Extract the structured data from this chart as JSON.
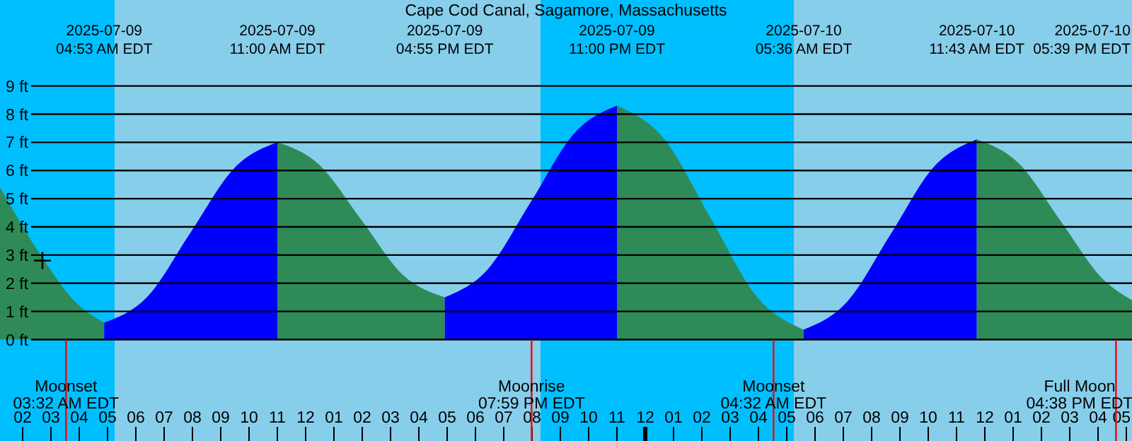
{
  "chart_data": {
    "type": "area",
    "title": "Cape Cod Canal, Sagamore, Massachusetts",
    "xlim": [
      "2025-07-09T01:12",
      "2025-07-10T17:12"
    ],
    "ylim": [
      -3.6,
      12.05
    ],
    "yticks": [
      {
        "value": 0,
        "label": "0 ft"
      },
      {
        "value": 1,
        "label": "1 ft"
      },
      {
        "value": 2,
        "label": "2 ft"
      },
      {
        "value": 3,
        "label": "3 ft"
      },
      {
        "value": 4,
        "label": "4 ft"
      },
      {
        "value": 5,
        "label": "5 ft"
      },
      {
        "value": 6,
        "label": "6 ft"
      },
      {
        "value": 7,
        "label": "7 ft"
      },
      {
        "value": 8,
        "label": "8 ft"
      },
      {
        "value": 9,
        "label": "9 ft"
      }
    ],
    "xticks": [
      {
        "value": "2025-07-09T02:00",
        "label": "02"
      },
      {
        "value": "2025-07-09T03:00",
        "label": "03"
      },
      {
        "value": "2025-07-09T04:00",
        "label": "04"
      },
      {
        "value": "2025-07-09T05:00",
        "label": "05"
      },
      {
        "value": "2025-07-09T06:00",
        "label": "06"
      },
      {
        "value": "2025-07-09T07:00",
        "label": "07"
      },
      {
        "value": "2025-07-09T08:00",
        "label": "08"
      },
      {
        "value": "2025-07-09T09:00",
        "label": "09"
      },
      {
        "value": "2025-07-09T10:00",
        "label": "10"
      },
      {
        "value": "2025-07-09T11:00",
        "label": "11"
      },
      {
        "value": "2025-07-09T12:00",
        "label": "12"
      },
      {
        "value": "2025-07-09T13:00",
        "label": "01"
      },
      {
        "value": "2025-07-09T14:00",
        "label": "02"
      },
      {
        "value": "2025-07-09T15:00",
        "label": "03"
      },
      {
        "value": "2025-07-09T16:00",
        "label": "04"
      },
      {
        "value": "2025-07-09T17:00",
        "label": "05"
      },
      {
        "value": "2025-07-09T18:00",
        "label": "06"
      },
      {
        "value": "2025-07-09T19:00",
        "label": "07"
      },
      {
        "value": "2025-07-09T20:00",
        "label": "08"
      },
      {
        "value": "2025-07-09T21:00",
        "label": "09"
      },
      {
        "value": "2025-07-09T22:00",
        "label": "10"
      },
      {
        "value": "2025-07-09T23:00",
        "label": "11"
      },
      {
        "value": "2025-07-10T00:00",
        "label": "12"
      },
      {
        "value": "2025-07-10T01:00",
        "label": "01"
      },
      {
        "value": "2025-07-10T02:00",
        "label": "02"
      },
      {
        "value": "2025-07-10T03:00",
        "label": "03"
      },
      {
        "value": "2025-07-10T04:00",
        "label": "04"
      },
      {
        "value": "2025-07-10T05:00",
        "label": "05"
      },
      {
        "value": "2025-07-10T06:00",
        "label": "06"
      },
      {
        "value": "2025-07-10T07:00",
        "label": "07"
      },
      {
        "value": "2025-07-10T08:00",
        "label": "08"
      },
      {
        "value": "2025-07-10T09:00",
        "label": "09"
      },
      {
        "value": "2025-07-10T10:00",
        "label": "10"
      },
      {
        "value": "2025-07-10T11:00",
        "label": "11"
      },
      {
        "value": "2025-07-10T12:00",
        "label": "12"
      },
      {
        "value": "2025-07-10T13:00",
        "label": "01"
      },
      {
        "value": "2025-07-10T14:00",
        "label": "02"
      },
      {
        "value": "2025-07-10T15:00",
        "label": "03"
      },
      {
        "value": "2025-07-10T16:00",
        "label": "04"
      },
      {
        "value": "2025-07-10T17:00",
        "label": "05"
      }
    ],
    "grid": "y",
    "series": [
      {
        "color": "#2e8b57",
        "x": [
          "2025-07-09T01:12",
          "2025-07-09T02:42",
          "2025-07-09T03:48",
          "2025-07-09T04:53"
        ],
        "values": [
          5.4,
          2.9,
          1.4,
          0.6
        ]
      },
      {
        "color": "#0000ff",
        "x": [
          "2025-07-09T04:53",
          "2025-07-09T06:25",
          "2025-07-09T07:56",
          "2025-07-09T09:28",
          "2025-07-09T11:00"
        ],
        "values": [
          0.6,
          1.53,
          3.8,
          6.07,
          7.0
        ]
      },
      {
        "color": "#2e8b57",
        "x": [
          "2025-07-09T11:00",
          "2025-07-09T12:29",
          "2025-07-09T13:58",
          "2025-07-09T15:26",
          "2025-07-09T16:55"
        ],
        "values": [
          7.0,
          6.2,
          4.25,
          2.3,
          1.5
        ]
      },
      {
        "color": "#0000ff",
        "x": [
          "2025-07-09T16:55",
          "2025-07-09T18:26",
          "2025-07-09T19:58",
          "2025-07-09T21:29",
          "2025-07-09T23:00"
        ],
        "values": [
          1.5,
          2.49,
          4.9,
          7.31,
          8.3
        ]
      },
      {
        "color": "#2e8b57",
        "x": [
          "2025-07-09T23:00",
          "2025-07-10T00:39",
          "2025-07-10T02:18",
          "2025-07-10T03:57",
          "2025-07-10T05:36"
        ],
        "values": [
          8.3,
          7.14,
          4.33,
          1.51,
          0.35
        ]
      },
      {
        "color": "#0000ff",
        "x": [
          "2025-07-10T05:36",
          "2025-07-10T07:08",
          "2025-07-10T08:40",
          "2025-07-10T10:11",
          "2025-07-10T11:43"
        ],
        "values": [
          0.35,
          1.34,
          3.73,
          6.11,
          7.1
        ]
      },
      {
        "color": "#2e8b57",
        "x": [
          "2025-07-10T11:43",
          "2025-07-10T13:12",
          "2025-07-10T14:41",
          "2025-07-10T16:10",
          "2025-07-10T17:12"
        ],
        "values": [
          7.1,
          6.25,
          4.2,
          2.15,
          1.4
        ]
      },
      {
        "type": "scatter",
        "marker": "cross",
        "color": "#000000",
        "x": [
          "2025-07-09T02:42"
        ],
        "values": [
          2.8
        ]
      }
    ],
    "bands": [
      {
        "axis": "x",
        "from": "2025-07-09T01:12",
        "to": "2025-07-09T05:15",
        "color": "#00bfff"
      },
      {
        "axis": "x",
        "from": "2025-07-09T20:18",
        "to": "2025-07-10T05:15",
        "color": "#00bfff"
      }
    ],
    "ref_lines": [
      {
        "axis": "x",
        "value": "2025-07-09T03:32",
        "label": "Moonset\n03:32 AM EDT",
        "color": "#ff0000"
      },
      {
        "axis": "x",
        "value": "2025-07-09T19:59",
        "label": "Moonrise\n07:59 PM EDT",
        "color": "#ff0000"
      },
      {
        "axis": "x",
        "value": "2025-07-10T04:32",
        "label": "Moonset\n04:32 AM EDT",
        "color": "#ff0000"
      },
      {
        "axis": "x",
        "value": "2025-07-10T16:38",
        "label": "Full Moon\n04:38 PM EDT",
        "color": "#ff0000"
      }
    ],
    "annotations": [
      "2025-07-09\n04:53 AM EDT",
      "2025-07-09\n11:00 AM EDT",
      "2025-07-09\n04:55 PM EDT",
      "2025-07-09\n11:00 PM EDT",
      "2025-07-10\n05:36 AM EDT",
      "2025-07-10\n11:43 AM EDT",
      "2025-07-10\n05:39 PM EDT"
    ]
  }
}
